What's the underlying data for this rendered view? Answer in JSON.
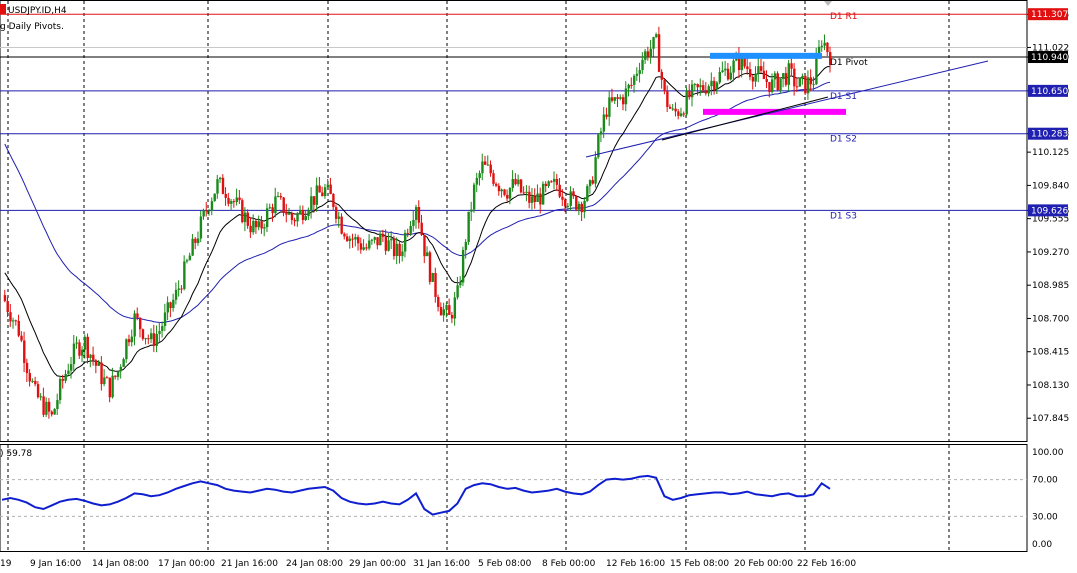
{
  "header": {
    "symbol": "USDJPY.ID,H4",
    "indicator_name": "g Daily Pivots.",
    "rsi_label": ") 59.78"
  },
  "colors": {
    "bull": "#1a8a1a",
    "bear": "#e01010",
    "ma_long": "#1f1fb0",
    "ma_short": "#000000",
    "pivot_line": "#1f1fb0",
    "r1_line": "#e01010",
    "rsi": "#0f1fd0",
    "zone_blue": "#1e90ff",
    "zone_magenta": "#ff00ff"
  },
  "chart_data": [
    {
      "type": "candlestick",
      "title": "USDJPY.ID,H4",
      "ylim": [
        107.65,
        111.42
      ],
      "y_ticks": [
        "111.305",
        "111.022",
        "110.940",
        "110.650",
        "110.283",
        "110.125",
        "109.840",
        "109.626",
        "109.555",
        "109.270",
        "108.985",
        "108.700",
        "108.415",
        "108.130",
        "107.845"
      ],
      "x_ticks": [
        "19",
        "9 Jan 16:00",
        "14 Jan 08:00",
        "17 Jan 00:00",
        "21 Jan 16:00",
        "24 Jan 08:00",
        "29 Jan 00:00",
        "31 Jan 16:00",
        "5 Feb 08:00",
        "8 Feb 00:00",
        "12 Feb 16:00",
        "15 Feb 08:00",
        "20 Feb 00:00",
        "22 Feb 16:00"
      ],
      "price_boxes": [
        {
          "text": "111.307",
          "value": 111.307,
          "bg": "#e01010"
        },
        {
          "text": "110.940",
          "value": 110.94,
          "bg": "#000000"
        },
        {
          "text": "110.650",
          "value": 110.65,
          "bg": "#1f1fb0"
        },
        {
          "text": "110.283",
          "value": 110.283,
          "bg": "#1f1fb0"
        },
        {
          "text": "109.626",
          "value": 109.626,
          "bg": "#1f1fb0"
        }
      ],
      "pivots": [
        {
          "name": "D1 R1",
          "value": 111.307
        },
        {
          "name": "D1 Pivot",
          "value": 110.94
        },
        {
          "name": "D1 S1",
          "value": 110.65
        },
        {
          "name": "D1 S2",
          "value": 110.283
        },
        {
          "name": "D1 S3",
          "value": 109.626
        }
      ],
      "key_levels": {
        "ma_long_start": 110.24,
        "ma_short_start": 109.12,
        "zone_blue_value": 110.95,
        "zone_magenta_value": 110.47
      },
      "close_path": [
        108.9,
        108.75,
        108.6,
        108.3,
        108.05,
        107.95,
        107.85,
        108.1,
        108.3,
        108.45,
        108.5,
        108.35,
        108.2,
        108.1,
        108.25,
        108.5,
        108.7,
        108.6,
        108.5,
        108.6,
        108.75,
        108.9,
        109.1,
        109.3,
        109.5,
        109.7,
        109.85,
        109.8,
        109.7,
        109.6,
        109.5,
        109.45,
        109.6,
        109.7,
        109.65,
        109.55,
        109.6,
        109.7,
        109.75,
        109.8,
        109.7,
        109.5,
        109.4,
        109.35,
        109.3,
        109.35,
        109.4,
        109.3,
        109.25,
        109.5,
        109.7,
        109.3,
        109.0,
        108.8,
        108.7,
        108.9,
        109.4,
        109.8,
        110.0,
        109.95,
        109.85,
        109.8,
        109.85,
        109.75,
        109.7,
        109.75,
        109.8,
        109.85,
        109.75,
        109.7,
        109.7,
        109.8,
        110.2,
        110.5,
        110.55,
        110.6,
        110.7,
        110.9,
        111.0,
        111.05,
        110.6,
        110.45,
        110.5,
        110.6,
        110.65,
        110.7,
        110.75,
        110.8,
        110.85,
        110.9,
        110.85,
        110.8,
        110.75,
        110.7,
        110.75,
        110.8,
        110.7,
        110.7,
        110.75,
        111.1,
        110.96
      ]
    },
    {
      "type": "line",
      "title": "RSI",
      "ylim": [
        0,
        100
      ],
      "y_ticks": [
        "100.00",
        "70.00",
        "30.00",
        "0.00"
      ],
      "levels": [
        70,
        30
      ],
      "values": [
        48,
        50,
        48,
        45,
        40,
        38,
        42,
        46,
        48,
        49,
        47,
        44,
        42,
        43,
        46,
        50,
        55,
        54,
        52,
        53,
        56,
        60,
        63,
        66,
        68,
        66,
        64,
        60,
        58,
        57,
        56,
        58,
        60,
        59,
        57,
        56,
        58,
        60,
        61,
        62,
        58,
        50,
        46,
        44,
        43,
        44,
        46,
        44,
        43,
        48,
        55,
        38,
        32,
        34,
        36,
        44,
        60,
        64,
        66,
        65,
        62,
        60,
        61,
        58,
        56,
        57,
        58,
        60,
        57,
        55,
        54,
        57,
        64,
        70,
        71,
        70,
        71,
        73,
        74,
        72,
        52,
        48,
        50,
        53,
        54,
        55,
        56,
        56,
        54,
        55,
        57,
        54,
        53,
        52,
        54,
        55,
        52,
        52,
        54,
        66,
        60
      ]
    }
  ]
}
